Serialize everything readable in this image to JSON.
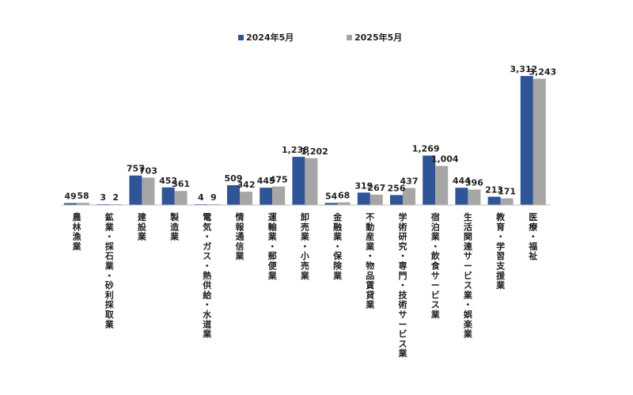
{
  "chart_data": {
    "type": "bar",
    "categories": [
      "農林漁業",
      "鉱業・採石業・砂利採取業",
      "建設業",
      "製造業",
      "電気・ガス・熱供給・水道業",
      "情報通信業",
      "運輸業・郵便業",
      "卸売業・小売業",
      "金融業・保険業",
      "不動産業・物品賃貸業",
      "学術研究・専門・技術サービス業",
      "宿泊業・飲食サービス業",
      "生活関連サービス業・娯楽業",
      "教育・学習支援業",
      "医療・福祉"
    ],
    "series": [
      {
        "name": "2024年5月",
        "color": "#2f5597",
        "values": [
          49,
          3,
          757,
          452,
          4,
          509,
          445,
          1238,
          54,
          319,
          256,
          1269,
          444,
          213,
          3312
        ],
        "labels": [
          "49",
          "3",
          "757",
          "452",
          "4",
          "509",
          "445",
          "1,238",
          "54",
          "319",
          "256",
          "1,269",
          "444",
          "213",
          "3,312"
        ]
      },
      {
        "name": "2025年5月",
        "color": "#a6a6a6",
        "values": [
          58,
          2,
          703,
          361,
          9,
          342,
          475,
          1202,
          68,
          267,
          437,
          1004,
          396,
          171,
          3243
        ],
        "labels": [
          "58",
          "2",
          "703",
          "361",
          "9",
          "342",
          "475",
          "1,202",
          "68",
          "267",
          "437",
          "1,004",
          "396",
          "171",
          "3,243"
        ]
      }
    ],
    "ylim": [
      0,
      3312
    ],
    "grid": false,
    "legend": "top-center",
    "title": "",
    "xlabel": "",
    "ylabel": ""
  }
}
